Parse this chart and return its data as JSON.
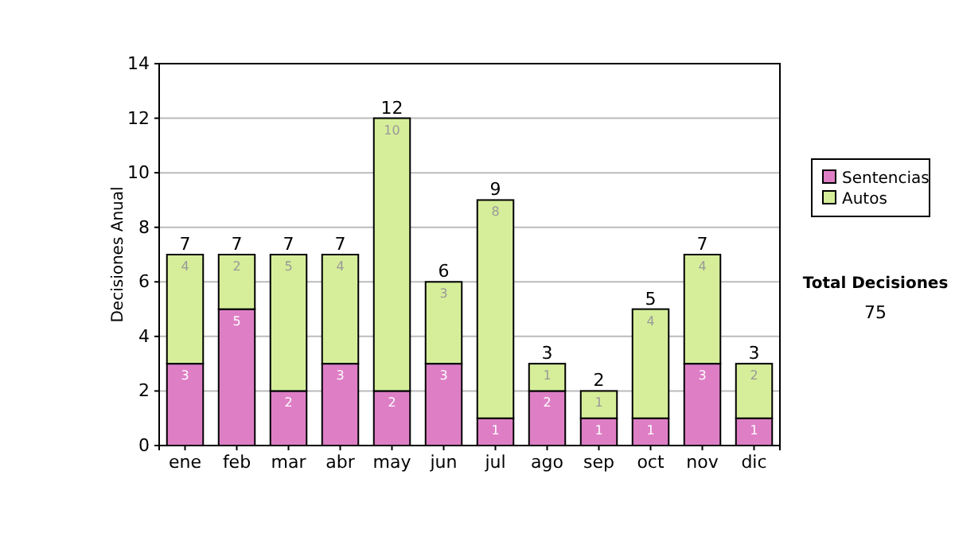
{
  "chart_data": {
    "type": "bar",
    "stacked": true,
    "ylabel": "Decisiones Anual",
    "categories": [
      "ene",
      "feb",
      "mar",
      "abr",
      "may",
      "jun",
      "jul",
      "ago",
      "sep",
      "oct",
      "nov",
      "dic"
    ],
    "series": [
      {
        "name": "Sentencias",
        "color": "#de7fc6",
        "values": [
          3,
          5,
          2,
          3,
          2,
          3,
          1,
          2,
          1,
          1,
          3,
          1
        ]
      },
      {
        "name": "Autos",
        "color": "#d6ee9a",
        "values": [
          4,
          2,
          5,
          4,
          10,
          3,
          8,
          1,
          1,
          4,
          4,
          2
        ]
      }
    ],
    "ylim": [
      0,
      14
    ],
    "yticks": [
      0,
      2,
      4,
      6,
      8,
      10,
      12,
      14
    ],
    "grid": "y",
    "legend": "right",
    "data_labels": true,
    "totals": [
      "7",
      "7",
      "7",
      "7",
      "12",
      "6",
      "9",
      "3",
      "2",
      "5",
      "7",
      "3"
    ],
    "annotations": [
      "Total Decisiones",
      "75"
    ]
  }
}
